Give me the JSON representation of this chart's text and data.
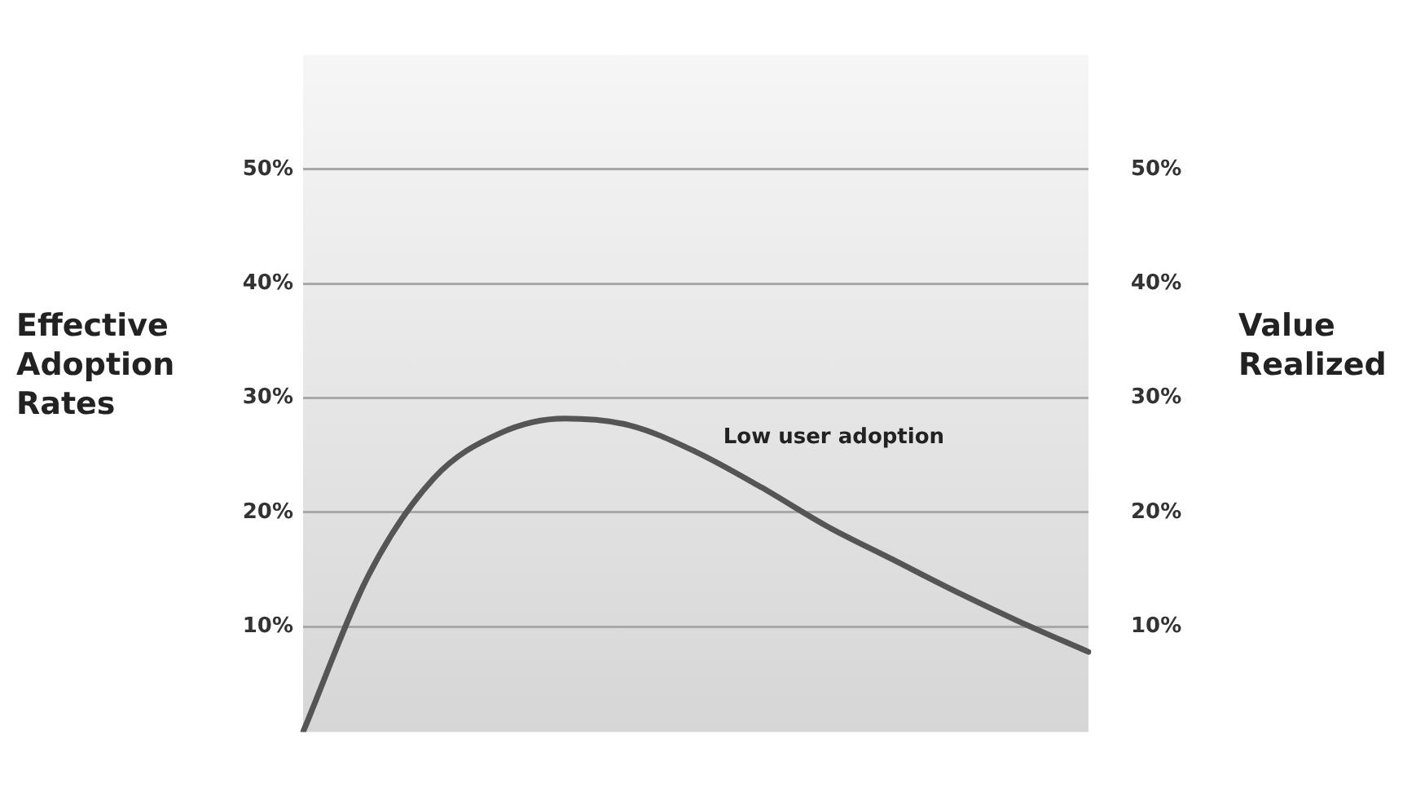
{
  "chart_data": {
    "type": "line",
    "ylabel": "Effective Adoption Rates",
    "y2label": "Value Realized",
    "categories": [
      null,
      null,
      null,
      null,
      null,
      null,
      null,
      null,
      null,
      null,
      null,
      null,
      null
    ],
    "series": [
      {
        "color": "#555555",
        "values": [
          0.8,
          14.5,
          23,
          26.9,
          28.2,
          27.6,
          25.3,
          22.2,
          18.8,
          15.9,
          13,
          10.3,
          7.8
        ]
      }
    ],
    "ylim": [
      0.8,
      60
    ],
    "yticks": [
      {
        "value": 10,
        "label": "10%"
      },
      {
        "value": 20,
        "label": "20%"
      },
      {
        "value": 30,
        "label": "30%"
      },
      {
        "value": 40,
        "label": "40%"
      },
      {
        "value": 50,
        "label": "50%"
      }
    ],
    "y2lim": [
      0.8,
      60
    ],
    "y2ticks": [
      {
        "value": 10,
        "label": "10%"
      },
      {
        "value": 20,
        "label": "20%"
      },
      {
        "value": 30,
        "label": "30%"
      },
      {
        "value": 40,
        "label": "40%"
      },
      {
        "value": 50,
        "label": "50%"
      }
    ],
    "annotations": [
      "Low user adoption"
    ],
    "grid": "y",
    "legend": false,
    "marker": "none",
    "line_style": "solid"
  }
}
